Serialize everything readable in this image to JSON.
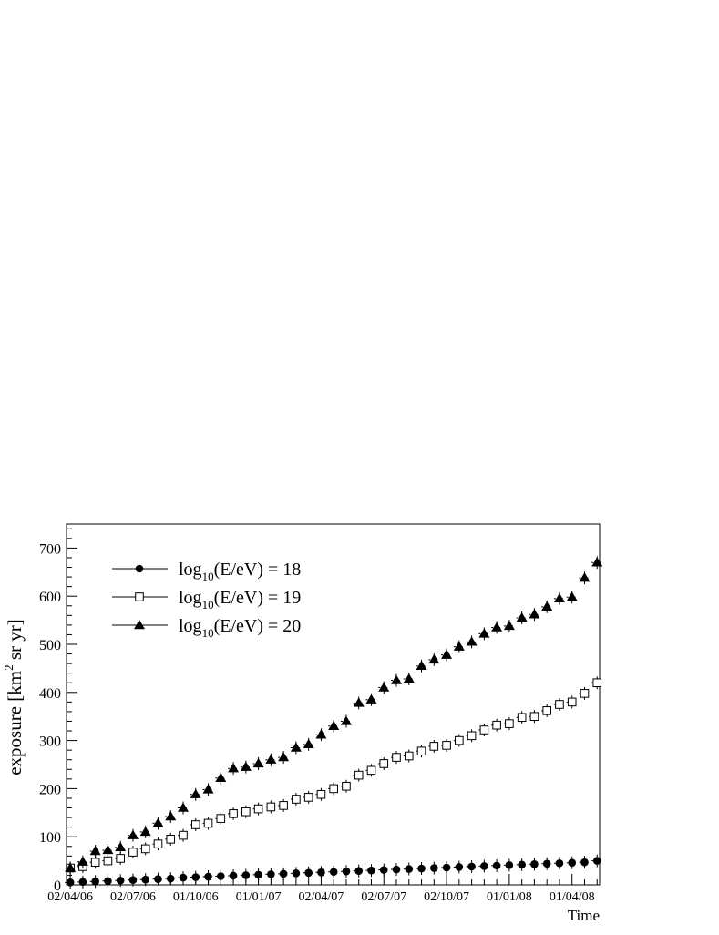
{
  "chart_data": {
    "type": "scatter",
    "xlabel": "Time",
    "ylabel": "exposure [km$^2$ sr yr]",
    "ylabel_parts": {
      "main": "exposure [km",
      "sup": "2",
      "rest": " sr yr]"
    },
    "x_tick_labels": [
      "02/04/06",
      "02/07/06",
      "01/10/06",
      "01/01/07",
      "02/04/07",
      "02/07/07",
      "02/10/07",
      "01/01/08",
      "01/04/08"
    ],
    "x_tick_index": [
      0,
      5,
      10,
      15,
      20,
      25,
      30,
      35,
      40
    ],
    "x_range_index": [
      -0.3,
      42.2
    ],
    "ylim": [
      0,
      750
    ],
    "y_ticks": [
      0,
      100,
      200,
      300,
      400,
      500,
      600,
      700
    ],
    "legend_position": "top-left",
    "series": [
      {
        "name": "log10(E/eV) = 18",
        "legend": {
          "prefix": "log",
          "sub": "10",
          "suffix": "(E/eV) = 18"
        },
        "marker": "filled-circle",
        "values": [
          5,
          6,
          7,
          8,
          9,
          10,
          11,
          12,
          13,
          15,
          16,
          17,
          18,
          19,
          20,
          21,
          22,
          23,
          24,
          25,
          26,
          27,
          28,
          29,
          30,
          31,
          32,
          33,
          34,
          35,
          36,
          37,
          38,
          39,
          40,
          41,
          42,
          43,
          44,
          45,
          46,
          47
        ]
      },
      {
        "name": "log10(E/eV) = 19",
        "legend": {
          "prefix": "log",
          "sub": "10",
          "suffix": "(E/eV) = 19"
        },
        "marker": "open-square",
        "values": [
          35,
          38,
          47,
          50,
          55,
          68,
          75,
          85,
          95,
          103,
          125,
          128,
          138,
          148,
          152,
          158,
          162,
          165,
          178,
          182,
          188,
          200,
          205,
          228,
          238,
          252,
          265,
          268,
          278,
          288,
          290,
          300,
          310,
          322,
          332,
          335,
          348,
          350,
          362,
          375,
          380,
          398
        ]
      },
      {
        "name": "log10(E/eV) = 20",
        "legend": {
          "prefix": "log",
          "sub": "10",
          "suffix": "(E/eV) = 20"
        },
        "marker": "filled-triangle",
        "values": [
          35,
          48,
          70,
          72,
          78,
          103,
          110,
          128,
          142,
          160,
          188,
          198,
          222,
          242,
          245,
          252,
          260,
          265,
          285,
          292,
          312,
          330,
          340,
          378,
          385,
          410,
          425,
          428,
          455,
          468,
          478,
          495,
          505,
          522,
          535,
          538,
          555,
          562,
          578,
          595,
          598,
          638
        ]
      }
    ],
    "series_extra_last_point": {
      "index": 42,
      "values": [
        50,
        420,
        670
      ]
    }
  }
}
